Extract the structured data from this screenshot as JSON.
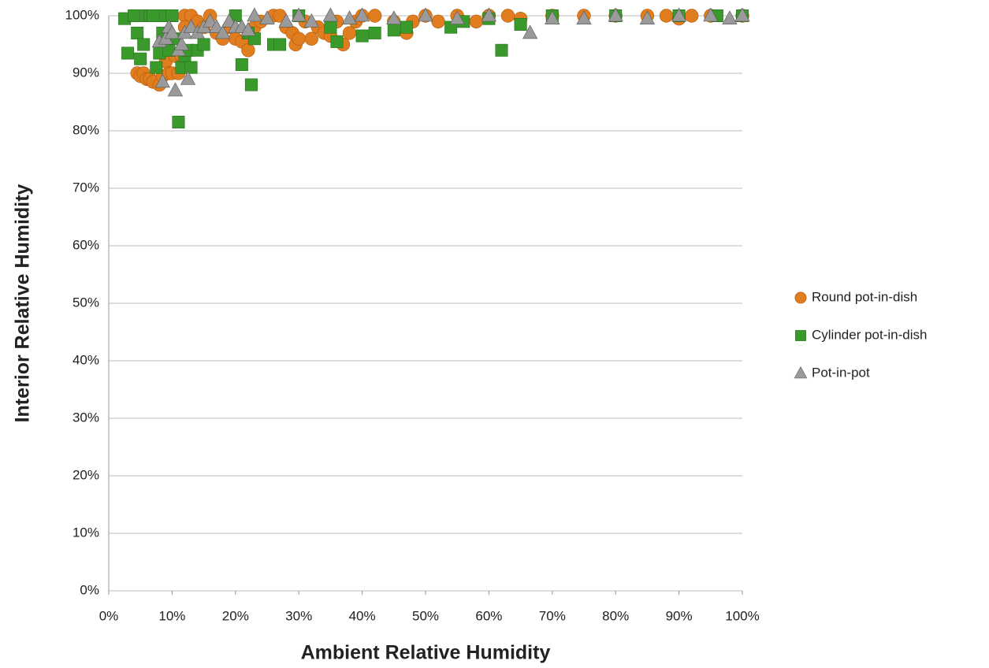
{
  "chart_data": {
    "type": "scatter",
    "x_label": "Ambient Relative Humidity",
    "y_label": "Interior Relative Humidity",
    "xlim": [
      0,
      100
    ],
    "ylim": [
      0,
      100
    ],
    "xticks": [
      {
        "value": 0,
        "label": "0%"
      },
      {
        "value": 10,
        "label": "10%"
      },
      {
        "value": 20,
        "label": "20%"
      },
      {
        "value": 30,
        "label": "30%"
      },
      {
        "value": 40,
        "label": "40%"
      },
      {
        "value": 50,
        "label": "50%"
      },
      {
        "value": 60,
        "label": "60%"
      },
      {
        "value": 70,
        "label": "70%"
      },
      {
        "value": 80,
        "label": "80%"
      },
      {
        "value": 90,
        "label": "90%"
      },
      {
        "value": 100,
        "label": "100%"
      }
    ],
    "yticks": [
      {
        "value": 0,
        "label": "0%"
      },
      {
        "value": 10,
        "label": "10%"
      },
      {
        "value": 20,
        "label": "20%"
      },
      {
        "value": 30,
        "label": "30%"
      },
      {
        "value": 40,
        "label": "40%"
      },
      {
        "value": 50,
        "label": "50%"
      },
      {
        "value": 60,
        "label": "60%"
      },
      {
        "value": 70,
        "label": "70%"
      },
      {
        "value": 80,
        "label": "80%"
      },
      {
        "value": 90,
        "label": "90%"
      },
      {
        "value": 100,
        "label": "100%"
      }
    ],
    "grid": true,
    "legend": "right",
    "series": [
      {
        "name": "Round pot-in-dish",
        "color": "#e07d1e",
        "marker": "circle",
        "x": [
          4.5,
          5,
          5.5,
          6,
          6.5,
          7,
          8,
          8.5,
          9,
          9.5,
          10,
          10.5,
          11,
          11.5,
          12,
          12,
          13,
          14,
          15,
          16,
          17,
          18,
          19,
          20,
          21,
          22,
          23,
          24,
          26,
          27,
          28,
          29,
          29.5,
          30,
          31,
          32,
          33,
          34,
          35,
          36,
          37,
          38,
          39,
          40,
          42,
          45,
          47,
          48,
          50,
          52,
          55,
          58,
          60,
          63,
          65,
          70,
          75,
          80,
          85,
          88,
          90,
          92,
          95,
          100
        ],
        "values": [
          90,
          89.5,
          90,
          89,
          89,
          88.5,
          88,
          89.5,
          92,
          90,
          90,
          93,
          90,
          93,
          100,
          98,
          100,
          99,
          98,
          100,
          97,
          96,
          98,
          96,
          95.5,
          94,
          98,
          99,
          100,
          100,
          98,
          97,
          95,
          96,
          99,
          96,
          98,
          97,
          96.5,
          99,
          95,
          97,
          99,
          100,
          100,
          99,
          97,
          99,
          100,
          99,
          100,
          99,
          100,
          100,
          99.5,
          100,
          100,
          100,
          100,
          100,
          99.5,
          100,
          100,
          100
        ]
      },
      {
        "name": "Cylinder pot-in-dish",
        "color": "#3a992b",
        "marker": "square",
        "x": [
          2.5,
          3,
          4,
          4.5,
          5,
          5.5,
          6,
          6.5,
          7,
          7.5,
          8,
          8.5,
          9,
          9.5,
          10,
          10.5,
          11,
          11.5,
          12,
          12.5,
          13,
          14,
          15,
          20,
          21,
          22,
          22.5,
          23,
          26,
          27,
          30,
          35,
          36,
          40,
          42,
          45,
          47,
          54,
          56,
          60,
          62,
          65,
          70,
          80,
          90,
          96,
          100
        ],
        "values": [
          99.5,
          93.5,
          100,
          97,
          92.5,
          95,
          100,
          100,
          100,
          91,
          93.5,
          97,
          100,
          94,
          100,
          96,
          81.5,
          91,
          93,
          94,
          91,
          94,
          95,
          100,
          91.5,
          97,
          88,
          96,
          95,
          95,
          100,
          98,
          95.5,
          96.5,
          97,
          97.5,
          98,
          98,
          99,
          99.5,
          94,
          98.5,
          100,
          100,
          100,
          100,
          100
        ]
      },
      {
        "name": "Pot-in-pot",
        "color": "#9a9a9a",
        "marker": "triangle",
        "x": [
          8,
          8.5,
          9,
          9.5,
          10,
          10.5,
          11,
          11.5,
          12,
          12.5,
          13,
          14,
          15,
          16,
          17,
          18,
          19,
          20,
          21,
          22,
          23,
          25,
          28,
          30,
          32,
          35,
          38,
          40,
          45,
          50,
          55,
          60,
          66.5,
          70,
          75,
          80,
          85,
          90,
          95,
          98,
          100
        ],
        "values": [
          95.5,
          88.5,
          96,
          98,
          97,
          87,
          94,
          95,
          97,
          89,
          98,
          97,
          98,
          99,
          98,
          97,
          99,
          98,
          98,
          97.5,
          100,
          99.5,
          99,
          100,
          99,
          100,
          99.5,
          100,
          99.5,
          100,
          99.5,
          100,
          97,
          99.5,
          99.5,
          100,
          99.5,
          100,
          100,
          99.5,
          100
        ]
      }
    ]
  }
}
